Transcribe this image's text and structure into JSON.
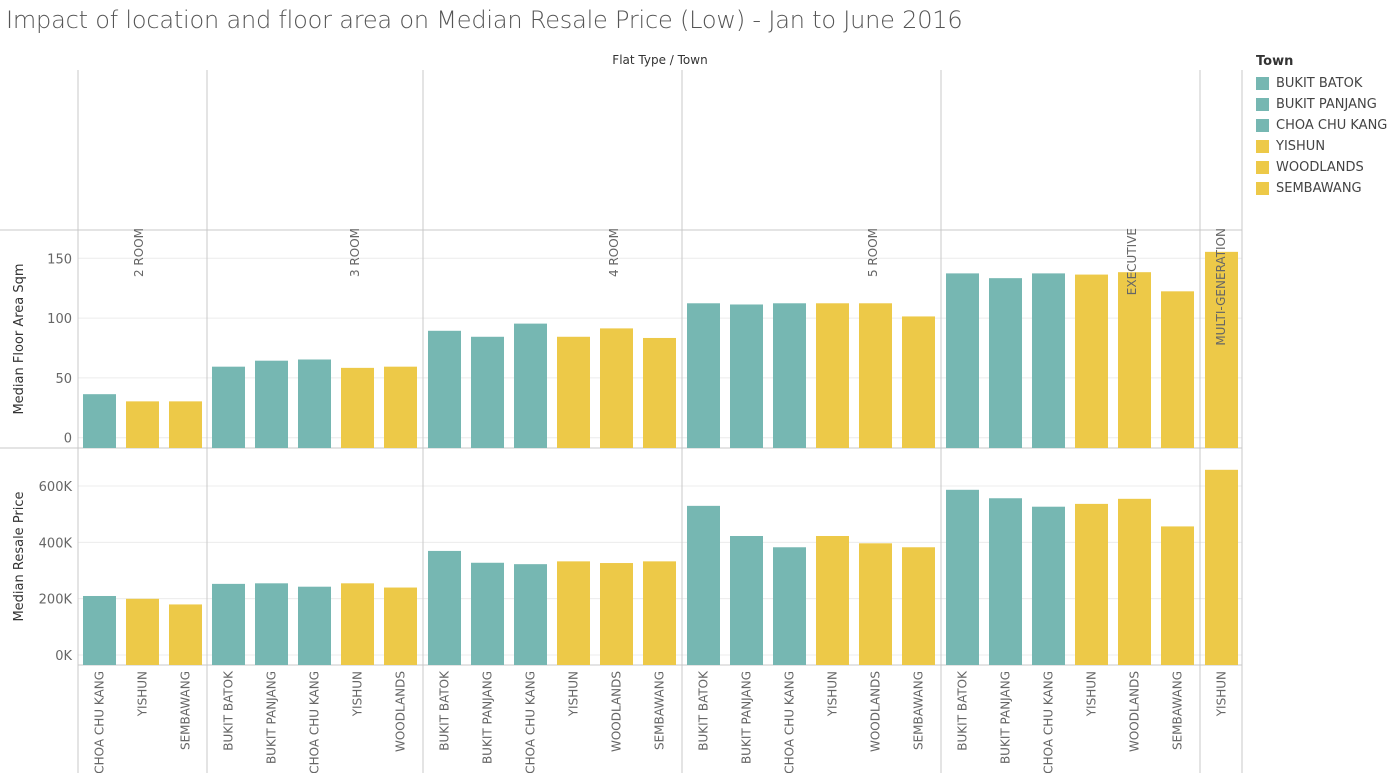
{
  "chart_data": {
    "type": "bar",
    "title": "Impact of location and floor area on Median Resale Price (Low) - Jan to June 2016",
    "column_header": "Flat Type  /  Town",
    "legend": {
      "title": "Town",
      "position": "right",
      "items": [
        {
          "name": "BUKIT BATOK",
          "color": "#76b7b2"
        },
        {
          "name": "BUKIT PANJANG",
          "color": "#76b7b2"
        },
        {
          "name": "CHOA CHU KANG",
          "color": "#76b7b2"
        },
        {
          "name": "YISHUN",
          "color": "#edc948"
        },
        {
          "name": "WOODLANDS",
          "color": "#edc948"
        },
        {
          "name": "SEMBAWANG",
          "color": "#edc948"
        }
      ]
    },
    "panes": [
      {
        "key": "area",
        "ylabel": "Median Floor Area Sqm",
        "ylim": [
          0,
          170
        ],
        "ticks": [
          0,
          50,
          100,
          150
        ],
        "tick_labels": [
          "0",
          "50",
          "100",
          "150"
        ],
        "grid": true
      },
      {
        "key": "price",
        "ylabel": "Median Resale Price",
        "ylim": [
          0,
          700000
        ],
        "ticks": [
          0,
          200000,
          400000,
          600000
        ],
        "tick_labels": [
          "0K",
          "200K",
          "400K",
          "600K"
        ],
        "grid": true
      }
    ],
    "groups": [
      {
        "flat_type": "2 ROOM",
        "bars": [
          {
            "town": "CHOA CHU KANG",
            "area": 45,
            "price": 245000
          },
          {
            "town": "YISHUN",
            "area": 39,
            "price": 235000
          },
          {
            "town": "SEMBAWANG",
            "area": 39,
            "price": 215000
          }
        ]
      },
      {
        "flat_type": "3 ROOM",
        "bars": [
          {
            "town": "BUKIT BATOK",
            "area": 68,
            "price": 288000
          },
          {
            "town": "BUKIT PANJANG",
            "area": 73,
            "price": 290000
          },
          {
            "town": "CHOA CHU KANG",
            "area": 74,
            "price": 278000
          },
          {
            "town": "YISHUN",
            "area": 67,
            "price": 290000
          },
          {
            "town": "WOODLANDS",
            "area": 68,
            "price": 275000
          }
        ]
      },
      {
        "flat_type": "4 ROOM",
        "bars": [
          {
            "town": "BUKIT BATOK",
            "area": 98,
            "price": 405000
          },
          {
            "town": "BUKIT PANJANG",
            "area": 93,
            "price": 363000
          },
          {
            "town": "CHOA CHU KANG",
            "area": 104,
            "price": 358000
          },
          {
            "town": "YISHUN",
            "area": 93,
            "price": 368000
          },
          {
            "town": "WOODLANDS",
            "area": 100,
            "price": 362000
          },
          {
            "town": "SEMBAWANG",
            "area": 92,
            "price": 368000
          }
        ]
      },
      {
        "flat_type": "5 ROOM",
        "bars": [
          {
            "town": "BUKIT BATOK",
            "area": 121,
            "price": 565000
          },
          {
            "town": "BUKIT PANJANG",
            "area": 120,
            "price": 458000
          },
          {
            "town": "CHOA CHU KANG",
            "area": 121,
            "price": 418000
          },
          {
            "town": "YISHUN",
            "area": 121,
            "price": 458000
          },
          {
            "town": "WOODLANDS",
            "area": 121,
            "price": 432000
          },
          {
            "town": "SEMBAWANG",
            "area": 110,
            "price": 418000
          }
        ]
      },
      {
        "flat_type": "EXECUTIVE",
        "bars": [
          {
            "town": "BUKIT BATOK",
            "area": 146,
            "price": 622000
          },
          {
            "town": "BUKIT PANJANG",
            "area": 142,
            "price": 592000
          },
          {
            "town": "CHOA CHU KANG",
            "area": 146,
            "price": 562000
          },
          {
            "town": "YISHUN",
            "area": 145,
            "price": 572000
          },
          {
            "town": "WOODLANDS",
            "area": 147,
            "price": 590000
          },
          {
            "town": "SEMBAWANG",
            "area": 131,
            "price": 492000
          }
        ]
      },
      {
        "flat_type": "MULTI-GENERATION",
        "bars": [
          {
            "town": "YISHUN",
            "area": 164,
            "price": 693000
          }
        ]
      }
    ]
  }
}
